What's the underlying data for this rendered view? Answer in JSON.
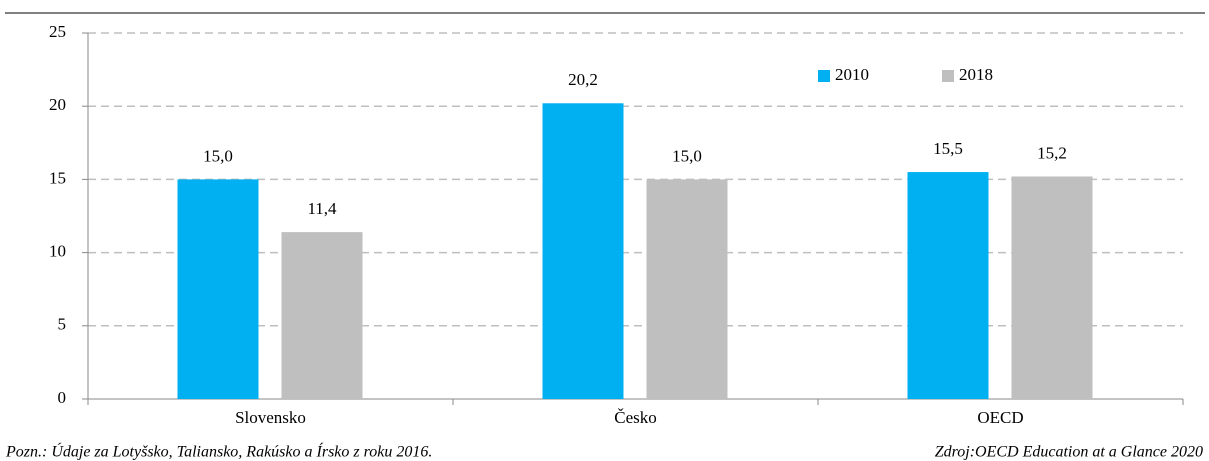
{
  "chart_data": {
    "type": "bar",
    "categories": [
      "Slovensko",
      "Česko",
      "OECD"
    ],
    "series": [
      {
        "name": "2010",
        "color": "#00b0f0",
        "values": [
          15.0,
          20.2,
          15.5
        ],
        "value_labels": [
          "15,0",
          "20,2",
          "15,5"
        ]
      },
      {
        "name": "2018",
        "color": "#bfbfbf",
        "values": [
          11.4,
          15.0,
          15.2
        ],
        "value_labels": [
          "11,4",
          "15,0",
          "15,2"
        ]
      }
    ],
    "ylim": [
      0,
      25
    ],
    "yticks": [
      0,
      5,
      10,
      15,
      20,
      25
    ],
    "grid": true,
    "legend": "top-right",
    "notes": {
      "left": "Pozn.: Údaje za Lotyšsko, Taliansko, Rakúsko a Írsko z roku 2016.",
      "right": "Zdroj:OECD Education at a Glance 2020"
    }
  }
}
